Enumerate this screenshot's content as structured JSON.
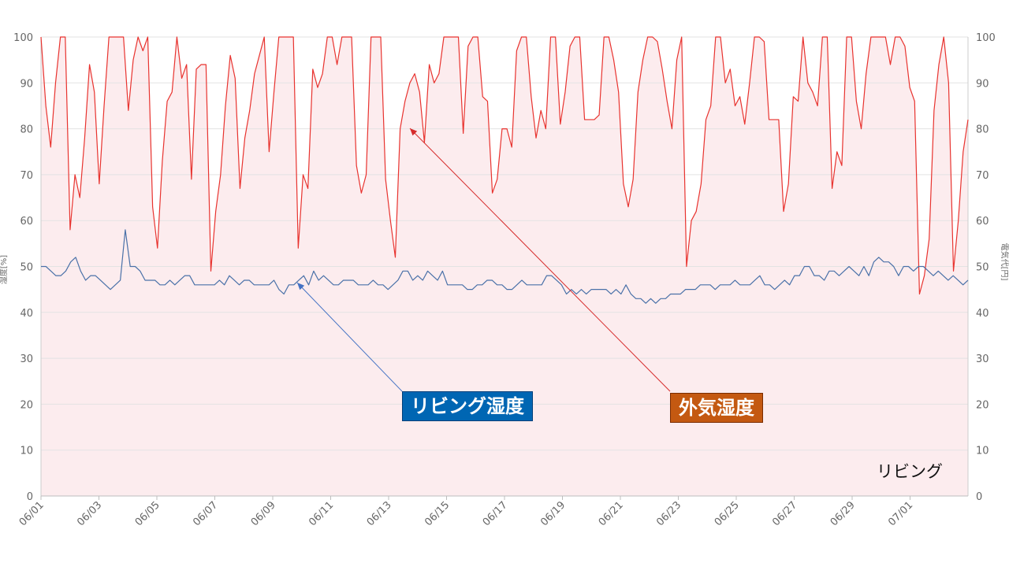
{
  "chart_data": {
    "type": "line",
    "title": "",
    "ylabel": "湿度[%]",
    "y2label": "電気代[円]",
    "ylim": [
      0,
      100
    ],
    "y2lim": [
      0,
      100
    ],
    "yticks": [
      0,
      10,
      20,
      30,
      40,
      50,
      60,
      70,
      80,
      90,
      100
    ],
    "x_range": [
      "06/01",
      "07/03"
    ],
    "xticks": [
      "06/01",
      "06/03",
      "06/05",
      "06/07",
      "06/09",
      "06/11",
      "06/13",
      "06/15",
      "06/17",
      "06/19",
      "06/21",
      "06/23",
      "06/25",
      "06/27",
      "06/29",
      "07/01"
    ],
    "grid": true,
    "series": [
      {
        "name": "外気湿度",
        "color": "#e8332f",
        "fill": "#fcecee",
        "values": [
          100,
          85,
          76,
          90,
          100,
          100,
          58,
          70,
          65,
          78,
          94,
          88,
          68,
          85,
          100,
          100,
          100,
          100,
          84,
          95,
          100,
          97,
          100,
          63,
          54,
          73,
          86,
          88,
          100,
          91,
          94,
          69,
          93,
          94,
          94,
          49,
          62,
          70,
          85,
          96,
          91,
          67,
          78,
          84,
          92,
          96,
          100,
          75,
          88,
          100,
          100,
          100,
          100,
          54,
          70,
          67,
          93,
          89,
          92,
          100,
          100,
          94,
          100,
          100,
          100,
          72,
          66,
          70,
          100,
          100,
          100,
          69,
          60,
          52,
          80,
          86,
          90,
          92,
          88,
          77,
          94,
          90,
          92,
          100,
          100,
          100,
          100,
          79,
          98,
          100,
          100,
          87,
          86,
          66,
          69,
          80,
          80,
          76,
          97,
          100,
          100,
          87,
          78,
          84,
          80,
          100,
          100,
          81,
          88,
          98,
          100,
          100,
          82,
          82,
          82,
          83,
          100,
          100,
          95,
          88,
          68,
          63,
          69,
          88,
          95,
          100,
          100,
          99,
          93,
          86,
          80,
          95,
          100,
          50,
          60,
          62,
          68,
          82,
          85,
          100,
          100,
          90,
          93,
          85,
          87,
          81,
          90,
          100,
          100,
          99,
          82,
          82,
          82,
          62,
          68,
          87,
          86,
          100,
          90,
          88,
          85,
          100,
          100,
          67,
          75,
          72,
          100,
          100,
          86,
          80,
          92,
          100,
          100,
          100,
          100,
          94,
          100,
          100,
          98,
          89,
          86,
          44,
          48,
          56,
          84,
          94,
          100,
          90,
          49,
          60,
          75,
          82
        ]
      },
      {
        "name": "リビング湿度",
        "color": "#4a71a8",
        "fill": "none",
        "values": [
          50,
          50,
          49,
          48,
          48,
          49,
          51,
          52,
          49,
          47,
          48,
          48,
          47,
          46,
          45,
          46,
          47,
          58,
          50,
          50,
          49,
          47,
          47,
          47,
          46,
          46,
          47,
          46,
          47,
          48,
          48,
          46,
          46,
          46,
          46,
          46,
          47,
          46,
          48,
          47,
          46,
          47,
          47,
          46,
          46,
          46,
          46,
          47,
          45,
          44,
          46,
          46,
          47,
          48,
          46,
          49,
          47,
          48,
          47,
          46,
          46,
          47,
          47,
          47,
          46,
          46,
          46,
          47,
          46,
          46,
          45,
          46,
          47,
          49,
          49,
          47,
          48,
          47,
          49,
          48,
          47,
          49,
          46,
          46,
          46,
          46,
          45,
          45,
          46,
          46,
          47,
          47,
          46,
          46,
          45,
          45,
          46,
          47,
          46,
          46,
          46,
          46,
          48,
          48,
          47,
          46,
          44,
          45,
          44,
          45,
          44,
          45,
          45,
          45,
          45,
          44,
          45,
          44,
          46,
          44,
          43,
          43,
          42,
          43,
          42,
          43,
          43,
          44,
          44,
          44,
          45,
          45,
          45,
          46,
          46,
          46,
          45,
          46,
          46,
          46,
          47,
          46,
          46,
          46,
          47,
          48,
          46,
          46,
          45,
          46,
          47,
          46,
          48,
          48,
          50,
          50,
          48,
          48,
          47,
          49,
          49,
          48,
          49,
          50,
          49,
          48,
          50,
          48,
          51,
          52,
          51,
          51,
          50,
          48,
          50,
          50,
          49,
          50,
          50,
          49,
          48,
          49,
          48,
          47,
          48,
          47,
          46,
          47
        ]
      }
    ],
    "annotations": [
      {
        "label": "リビング湿度",
        "bg": "#0066b3"
      },
      {
        "label": "外気湿度",
        "bg": "#c45911"
      }
    ],
    "room_label": "リビング"
  }
}
